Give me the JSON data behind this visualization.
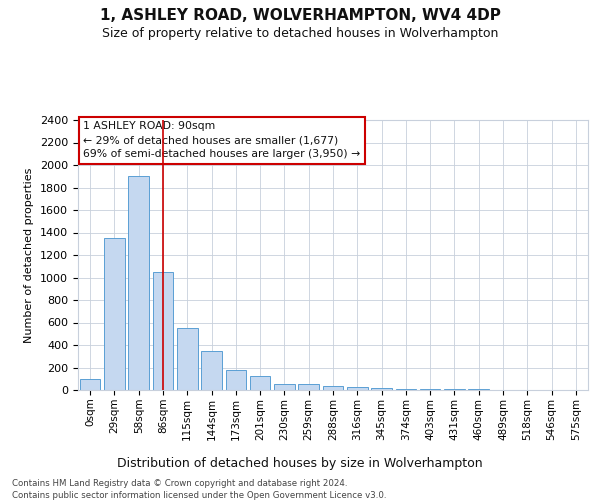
{
  "title": "1, ASHLEY ROAD, WOLVERHAMPTON, WV4 4DP",
  "subtitle": "Size of property relative to detached houses in Wolverhampton",
  "xlabel": "Distribution of detached houses by size in Wolverhampton",
  "ylabel": "Number of detached properties",
  "footer_line1": "Contains HM Land Registry data © Crown copyright and database right 2024.",
  "footer_line2": "Contains public sector information licensed under the Open Government Licence v3.0.",
  "categories": [
    "0sqm",
    "29sqm",
    "58sqm",
    "86sqm",
    "115sqm",
    "144sqm",
    "173sqm",
    "201sqm",
    "230sqm",
    "259sqm",
    "288sqm",
    "316sqm",
    "345sqm",
    "374sqm",
    "403sqm",
    "431sqm",
    "460sqm",
    "489sqm",
    "518sqm",
    "546sqm",
    "575sqm"
  ],
  "values": [
    100,
    1350,
    1900,
    1050,
    550,
    350,
    175,
    125,
    50,
    50,
    35,
    25,
    20,
    10,
    5,
    5,
    5,
    3,
    2,
    1,
    0
  ],
  "bar_color": "#c5d8f0",
  "bar_edge_color": "#5a9fd4",
  "ylim": [
    0,
    2400
  ],
  "yticks": [
    0,
    200,
    400,
    600,
    800,
    1000,
    1200,
    1400,
    1600,
    1800,
    2000,
    2200,
    2400
  ],
  "property_bar_index": 3,
  "vline_color": "#cc0000",
  "annotation_text_line1": "1 ASHLEY ROAD: 90sqm",
  "annotation_text_line2": "← 29% of detached houses are smaller (1,677)",
  "annotation_text_line3": "69% of semi-detached houses are larger (3,950) →",
  "annotation_box_color": "#cc0000",
  "background_color": "#ffffff",
  "grid_color": "#c8d0dc"
}
